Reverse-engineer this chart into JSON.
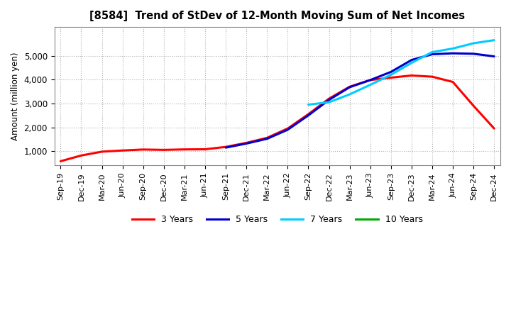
{
  "title": "[8584]  Trend of StDev of 12-Month Moving Sum of Net Incomes",
  "ylabel": "Amount (million yen)",
  "background_color": "#ffffff",
  "plot_bg_color": "#ffffff",
  "grid_color": "#aaaaaa",
  "x_labels": [
    "Sep-19",
    "Dec-19",
    "Mar-20",
    "Jun-20",
    "Sep-20",
    "Dec-20",
    "Mar-21",
    "Jun-21",
    "Sep-21",
    "Dec-21",
    "Mar-22",
    "Jun-22",
    "Sep-22",
    "Dec-22",
    "Mar-23",
    "Jun-23",
    "Sep-23",
    "Dec-23",
    "Mar-24",
    "Jun-24",
    "Sep-24",
    "Dec-24"
  ],
  "y_ticks": [
    1000,
    2000,
    3000,
    4000,
    5000
  ],
  "ylim": [
    400,
    6200
  ],
  "series": {
    "3yr": {
      "color": "#ff0000",
      "label": "3 Years",
      "values": [
        580,
        820,
        980,
        1030,
        1070,
        1055,
        1075,
        1080,
        1180,
        1350,
        1560,
        1950,
        2550,
        3200,
        3700,
        3980,
        4080,
        4170,
        4120,
        3900,
        2900,
        1950
      ]
    },
    "5yr": {
      "color": "#0000cc",
      "label": "5 Years",
      "values": [
        null,
        null,
        null,
        null,
        null,
        null,
        null,
        null,
        1150,
        1320,
        1520,
        1900,
        2500,
        3150,
        3680,
        3980,
        4320,
        4820,
        5060,
        5100,
        5080,
        4970
      ]
    },
    "7yr": {
      "color": "#00ccff",
      "label": "7 Years",
      "values": [
        null,
        null,
        null,
        null,
        null,
        null,
        null,
        null,
        null,
        null,
        null,
        null,
        2950,
        3050,
        3380,
        3780,
        4200,
        4700,
        5150,
        5300,
        5520,
        5650
      ]
    },
    "10yr": {
      "color": "#00aa00",
      "label": "10 Years",
      "values": [
        null,
        null,
        null,
        null,
        null,
        null,
        null,
        null,
        null,
        null,
        null,
        null,
        null,
        null,
        null,
        null,
        null,
        null,
        null,
        null,
        null,
        null
      ]
    }
  },
  "legend_entries": [
    {
      "label": "3 Years",
      "color": "#ff0000"
    },
    {
      "label": "5 Years",
      "color": "#0000cc"
    },
    {
      "label": "7 Years",
      "color": "#00ccff"
    },
    {
      "label": "10 Years",
      "color": "#00aa00"
    }
  ]
}
